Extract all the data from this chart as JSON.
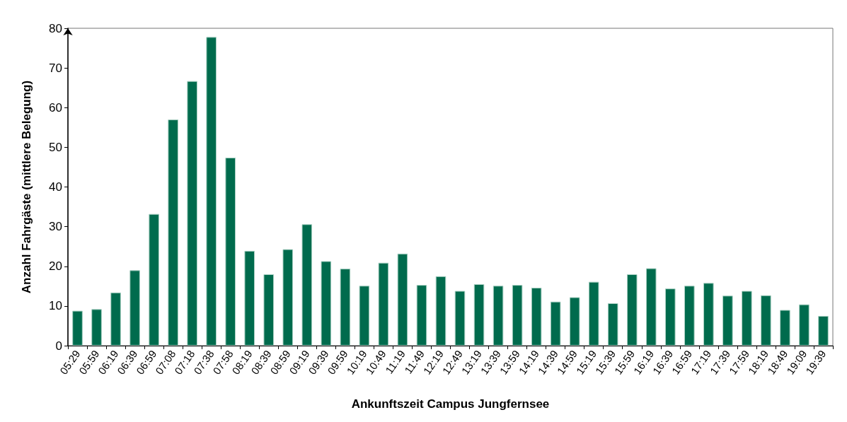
{
  "chart_data": {
    "type": "bar",
    "xlabel": "Ankunftszeit Campus Jungfernsee",
    "ylabel": "Anzahl Fahrgäste (mittlere Belegung)",
    "categories": [
      "05:29",
      "05:59",
      "06:19",
      "06:39",
      "06:59",
      "07:08",
      "07:18",
      "07:38",
      "07:58",
      "08:19",
      "08:39",
      "08:59",
      "09:19",
      "09:39",
      "09:59",
      "10:19",
      "10:49",
      "11:19",
      "11:49",
      "12:19",
      "12:49",
      "13:19",
      "13:39",
      "13:59",
      "14:19",
      "14:39",
      "14:59",
      "15:19",
      "15:39",
      "15:59",
      "16:19",
      "16:39",
      "16:59",
      "17:19",
      "17:39",
      "17:59",
      "18:19",
      "18:49",
      "19:09",
      "19:39"
    ],
    "values": [
      8.8,
      9.2,
      13.4,
      19.0,
      33.2,
      57.0,
      66.7,
      77.8,
      47.4,
      23.9,
      18.0,
      24.3,
      30.6,
      21.3,
      19.4,
      15.1,
      20.9,
      23.2,
      15.3,
      17.5,
      13.8,
      15.5,
      15.1,
      15.3,
      14.6,
      11.1,
      12.2,
      16.1,
      10.7,
      18.0,
      19.5,
      14.4,
      15.1,
      15.8,
      12.6,
      13.8,
      12.7,
      9.0,
      10.4,
      7.5
    ],
    "color": "#006b4d",
    "ylim": [
      0,
      80
    ],
    "yticks": [
      0,
      10,
      20,
      30,
      40,
      50,
      60,
      70,
      80
    ],
    "grid": false
  }
}
